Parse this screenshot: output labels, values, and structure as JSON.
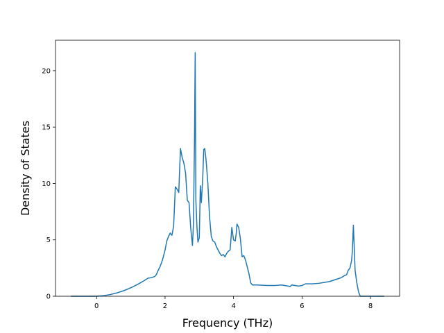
{
  "chart_data": {
    "type": "line",
    "title": "",
    "xlabel": "Frequency (THz)",
    "ylabel": "Density of States",
    "xlim": [
      -1.2,
      8.85
    ],
    "ylim": [
      0,
      22.7
    ],
    "xticks": [
      0,
      2,
      4,
      6,
      8
    ],
    "yticks": [
      0,
      5,
      10,
      15,
      20
    ],
    "grid": false,
    "legend": "none",
    "series": [
      {
        "color": "#1f77b4",
        "x": [
          -0.75,
          -0.5,
          0,
          0.2,
          0.4,
          0.6,
          0.8,
          1.0,
          1.2,
          1.4,
          1.5,
          1.6,
          1.7,
          1.75,
          1.8,
          1.85,
          1.9,
          1.95,
          2.0,
          2.05,
          2.1,
          2.15,
          2.2,
          2.25,
          2.3,
          2.35,
          2.4,
          2.45,
          2.5,
          2.55,
          2.6,
          2.65,
          2.7,
          2.75,
          2.8,
          2.83,
          2.86,
          2.88,
          2.9,
          2.93,
          2.96,
          3.0,
          3.03,
          3.06,
          3.1,
          3.13,
          3.16,
          3.2,
          3.25,
          3.3,
          3.35,
          3.4,
          3.45,
          3.5,
          3.55,
          3.6,
          3.65,
          3.7,
          3.75,
          3.8,
          3.85,
          3.9,
          3.95,
          4.0,
          4.05,
          4.08,
          4.1,
          4.15,
          4.2,
          4.25,
          4.3,
          4.35,
          4.4,
          4.45,
          4.5,
          4.55,
          4.6,
          4.7,
          5.0,
          5.2,
          5.4,
          5.6,
          5.65,
          5.7,
          5.9,
          6.0,
          6.1,
          6.3,
          6.5,
          6.6,
          6.8,
          7.0,
          7.1,
          7.15,
          7.2,
          7.25,
          7.3,
          7.35,
          7.4,
          7.45,
          7.47,
          7.5,
          7.55,
          7.6,
          7.65,
          7.7,
          7.8,
          8.0,
          8.2,
          8.4
        ],
        "y": [
          0,
          0,
          0,
          0.05,
          0.15,
          0.3,
          0.5,
          0.75,
          1.05,
          1.4,
          1.6,
          1.65,
          1.75,
          1.95,
          2.3,
          2.6,
          3.0,
          3.5,
          4.1,
          4.9,
          5.3,
          5.6,
          5.4,
          6.2,
          9.7,
          9.5,
          9.2,
          13.1,
          12.3,
          11.8,
          10.9,
          8.5,
          8.3,
          6.0,
          4.5,
          6.5,
          14.0,
          21.6,
          8.5,
          6.2,
          4.8,
          5.2,
          9.8,
          8.3,
          10.5,
          13.0,
          13.1,
          12.0,
          10.0,
          7.0,
          5.3,
          4.9,
          4.8,
          4.4,
          4.1,
          3.8,
          3.6,
          3.7,
          3.5,
          3.8,
          4.0,
          4.1,
          6.1,
          5.0,
          4.9,
          5.6,
          6.4,
          6.1,
          5.1,
          3.5,
          3.6,
          3.2,
          2.6,
          2.0,
          1.2,
          1.0,
          1.0,
          1.0,
          0.95,
          0.95,
          1.0,
          0.9,
          0.85,
          1.0,
          0.9,
          0.95,
          1.1,
          1.1,
          1.15,
          1.2,
          1.3,
          1.5,
          1.6,
          1.65,
          1.75,
          1.85,
          1.9,
          2.3,
          2.5,
          3.2,
          4.0,
          6.3,
          2.3,
          1.2,
          0.4,
          0,
          0,
          0,
          0,
          0
        ]
      }
    ]
  }
}
